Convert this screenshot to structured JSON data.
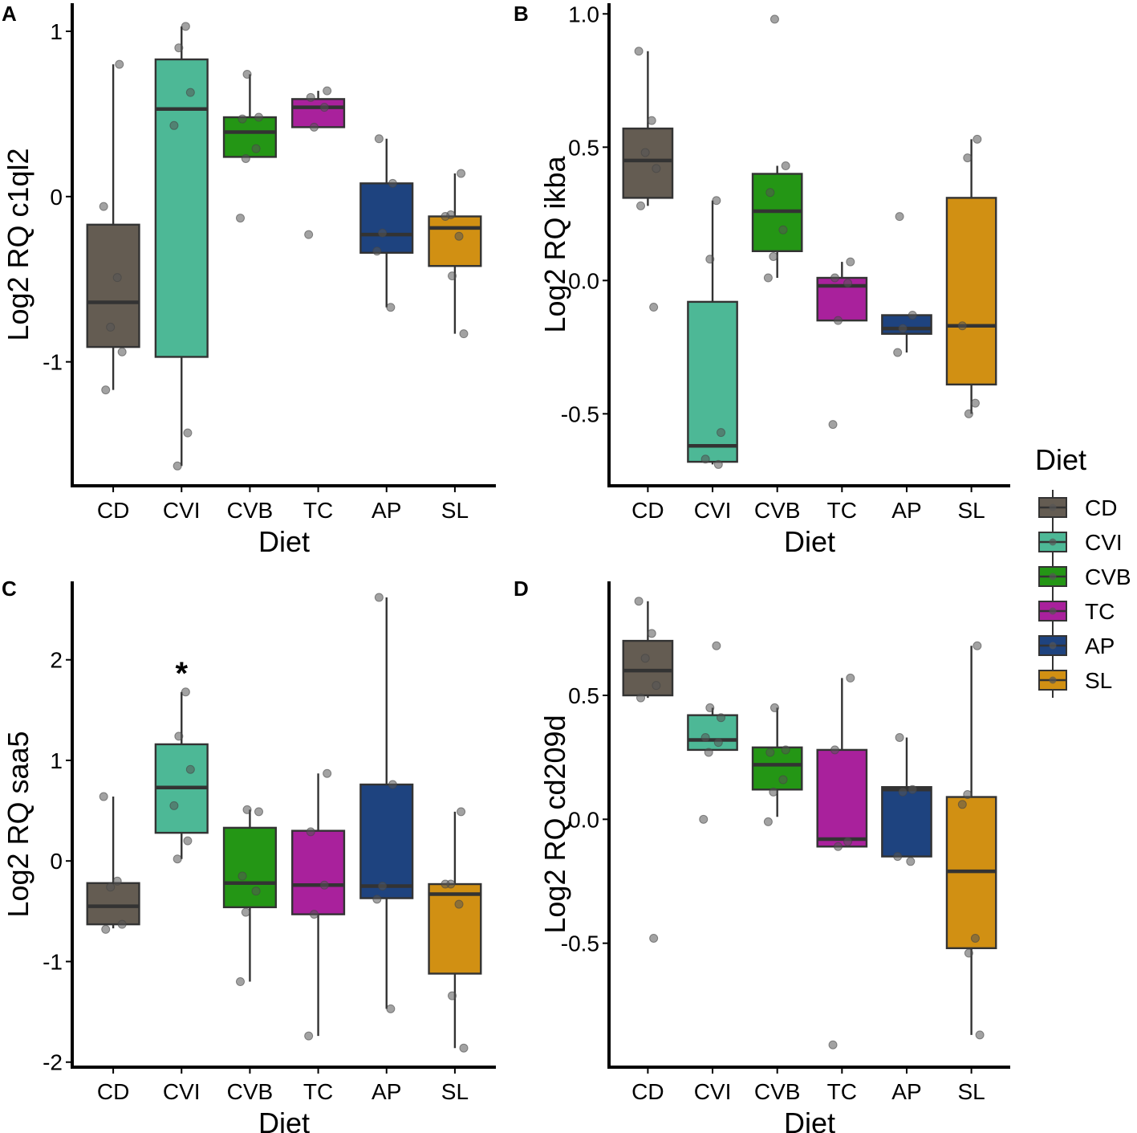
{
  "chart_data": [
    {
      "panel": "A",
      "type": "box",
      "xlabel": "Diet",
      "ylabel": "Log2 RQ c1ql2",
      "ylim": [
        -1.75,
        1.17
      ],
      "yticks": [
        -1,
        0,
        1
      ],
      "ytick_labels": [
        "-1",
        "0",
        "1"
      ],
      "categories": [
        "CD",
        "CVI",
        "CVB",
        "TC",
        "AP",
        "SL"
      ],
      "boxes": [
        {
          "q1": -0.91,
          "median": -0.64,
          "q3": -0.17,
          "lower": -1.17,
          "upper": 0.8
        },
        {
          "q1": -0.97,
          "median": 0.53,
          "q3": 0.83,
          "lower": -1.63,
          "upper": 1.03
        },
        {
          "q1": 0.24,
          "median": 0.39,
          "q3": 0.48,
          "lower": 0.24,
          "upper": 0.74
        },
        {
          "q1": 0.42,
          "median": 0.54,
          "q3": 0.59,
          "lower": 0.42,
          "upper": 0.64
        },
        {
          "q1": -0.34,
          "median": -0.23,
          "q3": 0.08,
          "lower": -0.67,
          "upper": 0.35
        },
        {
          "q1": -0.42,
          "median": -0.19,
          "q3": -0.12,
          "lower": -0.83,
          "upper": 0.14
        }
      ],
      "points": [
        [
          -0.06,
          -0.49,
          -0.79,
          -0.94,
          -1.17,
          0.8
        ],
        [
          1.03,
          0.9,
          0.63,
          0.43,
          -1.43,
          -1.63
        ],
        [
          0.74,
          0.48,
          0.47,
          0.29,
          0.23,
          -0.13
        ],
        [
          0.64,
          0.6,
          0.54,
          0.42,
          -0.23
        ],
        [
          0.35,
          0.08,
          -0.22,
          -0.33,
          -0.67
        ],
        [
          0.14,
          -0.11,
          -0.12,
          -0.24,
          -0.48,
          -0.83
        ]
      ],
      "annotations": []
    },
    {
      "panel": "B",
      "type": "box",
      "xlabel": "Diet",
      "ylabel": "Log2 RQ ikba",
      "ylim": [
        -0.77,
        1.04
      ],
      "yticks": [
        -0.5,
        0.0,
        0.5,
        1.0
      ],
      "ytick_labels": [
        "-0.5",
        "0.0",
        "0.5",
        "1.0"
      ],
      "categories": [
        "CD",
        "CVI",
        "CVB",
        "TC",
        "AP",
        "SL"
      ],
      "boxes": [
        {
          "q1": 0.31,
          "median": 0.45,
          "q3": 0.57,
          "lower": 0.28,
          "upper": 0.86
        },
        {
          "q1": -0.68,
          "median": -0.62,
          "q3": -0.08,
          "lower": -0.69,
          "upper": 0.3
        },
        {
          "q1": 0.11,
          "median": 0.26,
          "q3": 0.4,
          "lower": 0.01,
          "upper": 0.43
        },
        {
          "q1": -0.15,
          "median": -0.02,
          "q3": 0.01,
          "lower": -0.15,
          "upper": 0.07
        },
        {
          "q1": -0.2,
          "median": -0.18,
          "q3": -0.13,
          "lower": -0.27,
          "upper": -0.13
        },
        {
          "q1": -0.39,
          "median": -0.17,
          "q3": 0.31,
          "lower": -0.5,
          "upper": 0.53
        }
      ],
      "points": [
        [
          0.86,
          0.6,
          0.48,
          0.42,
          0.28,
          -0.1
        ],
        [
          0.3,
          0.08,
          -0.57,
          -0.67,
          -0.69
        ],
        [
          0.98,
          0.43,
          0.33,
          0.19,
          0.09,
          0.01
        ],
        [
          0.07,
          0.01,
          -0.01,
          -0.15,
          -0.54
        ],
        [
          0.24,
          -0.13,
          -0.18,
          -0.27
        ],
        [
          0.53,
          0.46,
          -0.17,
          -0.46,
          -0.5
        ]
      ],
      "annotations": []
    },
    {
      "panel": "C",
      "type": "box",
      "xlabel": "Diet",
      "ylabel": "Log2 RQ saa5",
      "ylim": [
        -2.05,
        2.78
      ],
      "yticks": [
        -2,
        -1,
        0,
        1,
        2
      ],
      "ytick_labels": [
        "-2",
        "-1",
        "0",
        "1",
        "2"
      ],
      "categories": [
        "CD",
        "CVI",
        "CVB",
        "TC",
        "AP",
        "SL"
      ],
      "boxes": [
        {
          "q1": -0.63,
          "median": -0.45,
          "q3": -0.22,
          "lower": -0.67,
          "upper": 0.64
        },
        {
          "q1": 0.28,
          "median": 0.73,
          "q3": 1.16,
          "lower": 0.02,
          "upper": 1.68
        },
        {
          "q1": -0.46,
          "median": -0.22,
          "q3": 0.33,
          "lower": -1.2,
          "upper": 0.51
        },
        {
          "q1": -0.53,
          "median": -0.24,
          "q3": 0.3,
          "lower": -1.74,
          "upper": 0.87
        },
        {
          "q1": -0.37,
          "median": -0.25,
          "q3": 0.76,
          "lower": -1.47,
          "upper": 2.62
        },
        {
          "q1": -1.12,
          "median": -0.33,
          "q3": -0.23,
          "lower": -1.86,
          "upper": 0.49
        }
      ],
      "points": [
        [
          0.64,
          -0.2,
          -0.26,
          -0.63,
          -0.68
        ],
        [
          1.68,
          1.24,
          0.91,
          0.55,
          0.2,
          0.02
        ],
        [
          0.51,
          0.49,
          -0.15,
          -0.3,
          -0.51,
          -1.2
        ],
        [
          0.87,
          0.29,
          -0.24,
          -0.53,
          -1.74
        ],
        [
          2.62,
          0.76,
          -0.25,
          -0.38,
          -1.47
        ],
        [
          0.49,
          -0.23,
          -0.23,
          -0.43,
          -1.34,
          -1.86
        ]
      ],
      "annotations": [
        {
          "category": "CVI",
          "text": "*"
        }
      ]
    },
    {
      "panel": "D",
      "type": "box",
      "xlabel": "Diet",
      "ylabel": "Log2 RQ cd209d",
      "ylim": [
        -1.0,
        0.96
      ],
      "yticks": [
        -0.5,
        0.0,
        0.5
      ],
      "ytick_labels": [
        "-0.5",
        "0.0",
        "0.5"
      ],
      "categories": [
        "CD",
        "CVI",
        "CVB",
        "TC",
        "AP",
        "SL"
      ],
      "boxes": [
        {
          "q1": 0.5,
          "median": 0.6,
          "q3": 0.72,
          "lower": 0.49,
          "upper": 0.88
        },
        {
          "q1": 0.28,
          "median": 0.32,
          "q3": 0.42,
          "lower": 0.28,
          "upper": 0.45
        },
        {
          "q1": 0.12,
          "median": 0.22,
          "q3": 0.29,
          "lower": 0.01,
          "upper": 0.45
        },
        {
          "q1": -0.11,
          "median": -0.08,
          "q3": 0.28,
          "lower": -0.11,
          "upper": 0.57
        },
        {
          "q1": -0.15,
          "median": 0.12,
          "q3": 0.13,
          "lower": -0.15,
          "upper": 0.33
        },
        {
          "q1": -0.52,
          "median": -0.21,
          "q3": 0.09,
          "lower": -0.87,
          "upper": 0.7
        }
      ],
      "points": [
        [
          0.88,
          0.75,
          0.65,
          0.54,
          0.49,
          -0.48
        ],
        [
          0.7,
          0.45,
          0.41,
          0.33,
          0.31,
          0.27,
          0.0
        ],
        [
          0.45,
          0.28,
          0.27,
          0.16,
          0.11,
          -0.01
        ],
        [
          0.57,
          0.28,
          -0.09,
          -0.11,
          -0.91
        ],
        [
          0.33,
          0.12,
          0.11,
          -0.15,
          -0.17
        ],
        [
          0.7,
          0.1,
          0.06,
          -0.48,
          -0.54,
          -0.87
        ]
      ],
      "annotations": []
    }
  ],
  "legend": {
    "title": "Diet",
    "items": [
      {
        "label": "CD",
        "color": "#645c52"
      },
      {
        "label": "CVI",
        "color": "#4db896"
      },
      {
        "label": "CVB",
        "color": "#249615"
      },
      {
        "label": "TC",
        "color": "#a9219c"
      },
      {
        "label": "AP",
        "color": "#1e437f"
      },
      {
        "label": "SL",
        "color": "#d19013"
      }
    ]
  }
}
